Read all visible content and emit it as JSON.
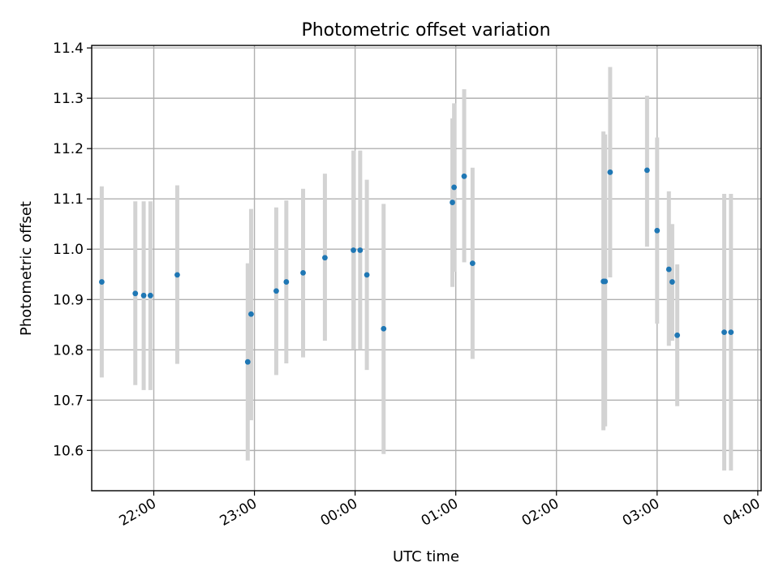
{
  "chart_data": {
    "type": "scatter",
    "title": "Photometric offset variation",
    "xlabel": "UTC time",
    "ylabel": "Photometric offset",
    "grid": true,
    "x_ticks": [
      "22:00",
      "23:00",
      "00:00",
      "01:00",
      "02:00",
      "03:00",
      "04:00"
    ],
    "y_ticks": [
      "10.6",
      "10.7",
      "10.8",
      "10.9",
      "11.0",
      "11.1",
      "11.2",
      "11.3",
      "11.4"
    ],
    "xlim": [
      "21:23",
      "04:02"
    ],
    "ylim": [
      10.52,
      11.405
    ],
    "colors": {
      "points": "#1f77b4",
      "error_bars": "#d3d3d3"
    },
    "points": [
      {
        "x": "21:29",
        "y": 10.935,
        "ylow": 10.745,
        "yhigh": 11.125
      },
      {
        "x": "21:49",
        "y": 10.912,
        "ylow": 10.73,
        "yhigh": 11.095
      },
      {
        "x": "21:54",
        "y": 10.908,
        "ylow": 10.72,
        "yhigh": 11.095
      },
      {
        "x": "21:58",
        "y": 10.908,
        "ylow": 10.72,
        "yhigh": 11.095
      },
      {
        "x": "22:14",
        "y": 10.949,
        "ylow": 10.772,
        "yhigh": 11.127
      },
      {
        "x": "22:56",
        "y": 10.776,
        "ylow": 10.58,
        "yhigh": 10.972
      },
      {
        "x": "22:58",
        "y": 10.871,
        "ylow": 10.66,
        "yhigh": 11.08
      },
      {
        "x": "23:13",
        "y": 10.917,
        "ylow": 10.75,
        "yhigh": 11.083
      },
      {
        "x": "23:19",
        "y": 10.935,
        "ylow": 10.773,
        "yhigh": 11.097
      },
      {
        "x": "23:29",
        "y": 10.953,
        "ylow": 10.785,
        "yhigh": 11.12
      },
      {
        "x": "23:42",
        "y": 10.983,
        "ylow": 10.818,
        "yhigh": 11.15
      },
      {
        "x": "23:59",
        "y": 10.998,
        "ylow": 10.8,
        "yhigh": 11.196
      },
      {
        "x": "00:03",
        "y": 10.998,
        "ylow": 10.8,
        "yhigh": 11.196
      },
      {
        "x": "00:07",
        "y": 10.949,
        "ylow": 10.76,
        "yhigh": 11.138
      },
      {
        "x": "00:17",
        "y": 10.842,
        "ylow": 10.593,
        "yhigh": 11.09
      },
      {
        "x": "00:58",
        "y": 11.093,
        "ylow": 10.925,
        "yhigh": 11.26
      },
      {
        "x": "00:59",
        "y": 11.123,
        "ylow": 10.955,
        "yhigh": 11.29
      },
      {
        "x": "01:05",
        "y": 11.145,
        "ylow": 10.974,
        "yhigh": 11.318
      },
      {
        "x": "01:10",
        "y": 10.972,
        "ylow": 10.782,
        "yhigh": 11.162
      },
      {
        "x": "02:28",
        "y": 10.936,
        "ylow": 10.64,
        "yhigh": 11.234
      },
      {
        "x": "02:29",
        "y": 10.936,
        "ylow": 10.648,
        "yhigh": 11.228
      },
      {
        "x": "02:32",
        "y": 11.153,
        "ylow": 10.944,
        "yhigh": 11.362
      },
      {
        "x": "02:54",
        "y": 11.157,
        "ylow": 11.005,
        "yhigh": 11.305
      },
      {
        "x": "03:00",
        "y": 11.037,
        "ylow": 10.852,
        "yhigh": 11.222
      },
      {
        "x": "03:07",
        "y": 10.96,
        "ylow": 10.808,
        "yhigh": 11.115
      },
      {
        "x": "03:09",
        "y": 10.935,
        "ylow": 10.818,
        "yhigh": 11.05
      },
      {
        "x": "03:12",
        "y": 10.829,
        "ylow": 10.688,
        "yhigh": 10.97
      },
      {
        "x": "03:40",
        "y": 10.835,
        "ylow": 10.56,
        "yhigh": 11.11
      },
      {
        "x": "03:44",
        "y": 10.835,
        "ylow": 10.56,
        "yhigh": 11.11
      }
    ]
  }
}
